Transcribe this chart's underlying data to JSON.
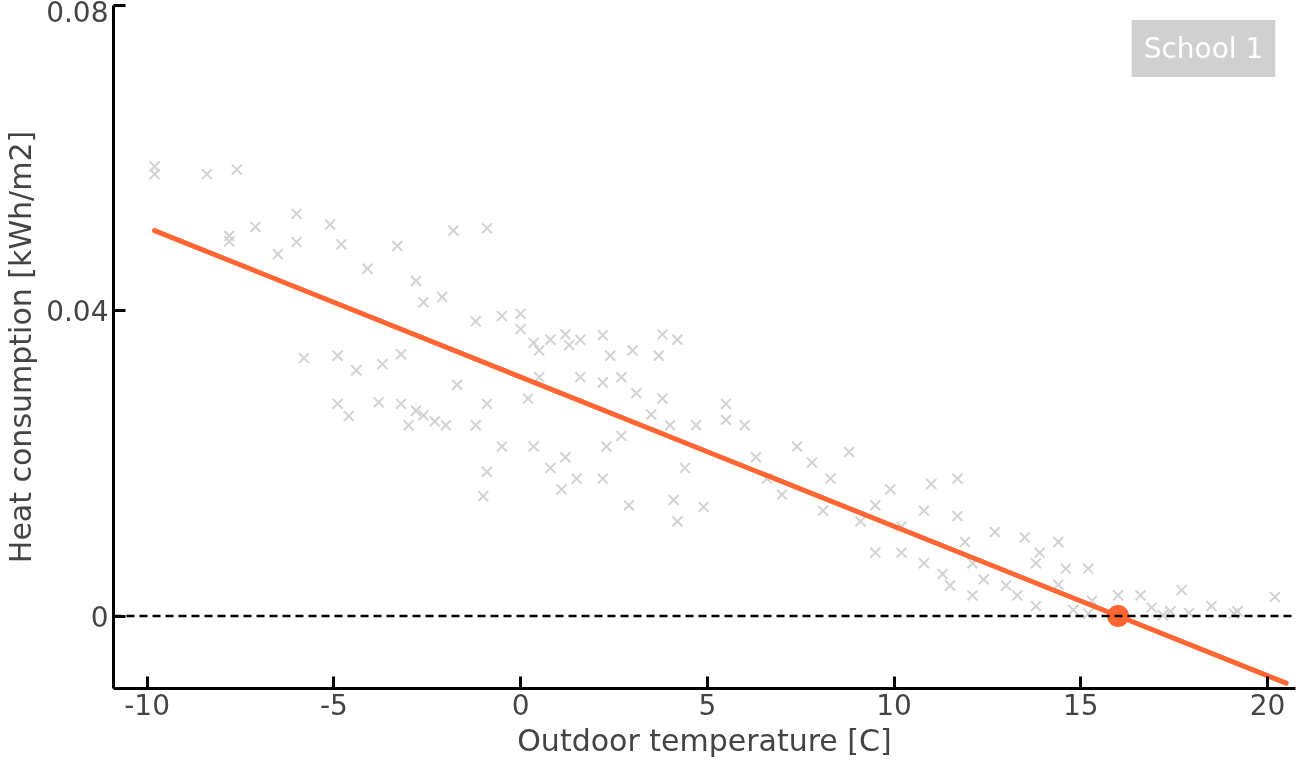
{
  "chart_data": {
    "type": "scatter",
    "xlabel": "Outdoor temperature [C]",
    "ylabel": "Heat consumption [kWh/m2]",
    "xlim": [
      -10.9,
      20.75
    ],
    "ylim": [
      -0.0095,
      0.08
    ],
    "xticks": [
      -10,
      -5,
      0,
      5,
      10,
      15,
      20
    ],
    "yticks": [
      0,
      0.04,
      0.08
    ],
    "grid": false,
    "annotations": [
      "School 1"
    ],
    "ref_lines": [
      {
        "axis": "y",
        "value": 0,
        "color": "#000000",
        "line_style": "dashed"
      }
    ],
    "series": [
      {
        "marker": "cross",
        "color": "#d3d3d3",
        "x": [
          -9.8,
          -9.8,
          -8.4,
          -7.6,
          -7.8,
          -7.8,
          -7.1,
          -6.0,
          -6.0,
          -5.1,
          -4.8,
          -6.5,
          -4.1,
          -3.3,
          -1.8,
          -0.9,
          -5.8,
          -4.9,
          -3.2,
          -2.6,
          -1.0,
          -4.4,
          -4.9,
          -4.6,
          -3.7,
          -3.2,
          -3.0,
          -2.0,
          -1.2,
          -2.3,
          -3.8,
          -2.8,
          -1.7,
          -0.9,
          -0.9,
          -0.5,
          0.0,
          -1.2,
          -2.6,
          -2.8,
          -2.1,
          -0.5,
          0.0,
          0.35,
          0.5,
          0.8,
          1.2,
          1.6,
          1.3,
          2.2,
          3.8,
          4.2,
          3.7,
          2.2,
          2.7,
          3.1,
          1.6,
          0.5,
          0.2,
          0.35,
          0.8,
          1.5,
          2.2,
          1.1,
          1.2,
          2.3,
          2.7,
          3.5,
          3.8,
          4.0,
          4.4,
          4.1,
          4.2,
          2.9,
          4.9,
          4.7,
          5.5,
          6.3,
          6.6,
          7.0,
          7.4,
          7.8,
          8.1,
          8.3,
          8.8,
          9.1,
          9.5,
          9.9,
          10.2,
          10.8,
          11.0,
          11.7,
          11.7,
          11.9,
          12.1,
          10.2,
          9.5,
          10.8,
          11.3,
          12.4,
          13.3,
          12.7,
          13.5,
          13.9,
          14.4,
          13.8,
          15.2,
          15.3,
          16.0,
          16.6,
          17.7,
          17.4,
          18.5,
          19.2,
          20.2,
          13.8,
          14.4,
          14.6,
          15.2,
          16.9,
          17.2,
          17.9,
          19.1,
          14.8,
          13.0,
          12.1,
          11.5,
          5.5,
          6.0,
          2.4,
          3.0
        ],
        "values": [
          0.0589,
          0.0579,
          0.0579,
          0.0585,
          0.0498,
          0.0491,
          0.051,
          0.0527,
          0.049,
          0.0513,
          0.0487,
          0.0474,
          0.0455,
          0.0485,
          0.0505,
          0.0508,
          0.0338,
          0.0341,
          0.0343,
          0.0263,
          0.0157,
          0.0322,
          0.0278,
          0.0262,
          0.033,
          0.0278,
          0.025,
          0.025,
          0.025,
          0.0255,
          0.028,
          0.0269,
          0.0303,
          0.0278,
          0.0189,
          0.0222,
          0.0396,
          0.0386,
          0.0411,
          0.0439,
          0.0418,
          0.0393,
          0.0376,
          0.0358,
          0.0348,
          0.0362,
          0.0369,
          0.0362,
          0.0355,
          0.0368,
          0.0369,
          0.0362,
          0.0341,
          0.0306,
          0.0313,
          0.0292,
          0.0313,
          0.0313,
          0.0285,
          0.0222,
          0.0194,
          0.018,
          0.018,
          0.0166,
          0.0208,
          0.0222,
          0.0236,
          0.0264,
          0.0285,
          0.025,
          0.0194,
          0.0152,
          0.0124,
          0.0145,
          0.0143,
          0.025,
          0.0278,
          0.0208,
          0.018,
          0.0159,
          0.0222,
          0.0201,
          0.0138,
          0.018,
          0.0215,
          0.0124,
          0.0145,
          0.0166,
          0.0117,
          0.0138,
          0.0173,
          0.018,
          0.0131,
          0.0097,
          0.0069,
          0.0083,
          0.0083,
          0.0069,
          0.0055,
          0.0048,
          0.0027,
          0.011,
          0.0103,
          0.0083,
          0.0041,
          0.0013,
          0.0062,
          0.002,
          0.0027,
          0.0027,
          0.0034,
          0.0006,
          0.0013,
          0.0006,
          0.0025,
          0.0069,
          0.0097,
          0.0062,
          0.0003,
          0.0011,
          0.0001,
          0.0004,
          0.0003,
          0.0008,
          0.004,
          0.0027,
          0.004,
          0.0257,
          0.025,
          0.0341,
          0.0348
        ]
      },
      {
        "type": "line",
        "color": "#ff6633",
        "line_style": "solid",
        "x": [
          -9.8,
          20.5
        ],
        "values": [
          0.0505,
          -0.0088
        ]
      },
      {
        "marker": "circle",
        "color": "#ff6633",
        "x": [
          16
        ],
        "values": [
          0
        ]
      }
    ]
  }
}
